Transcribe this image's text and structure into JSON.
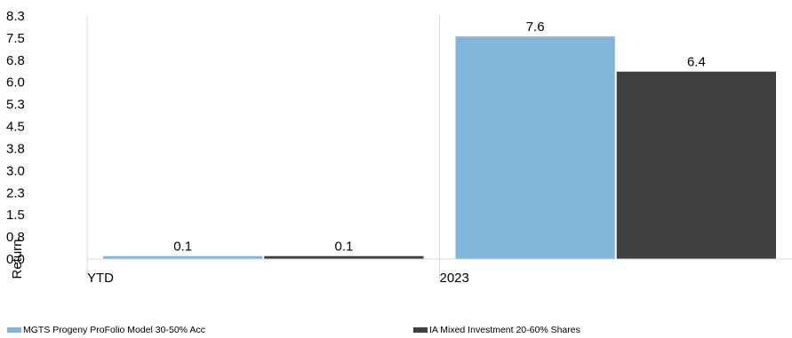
{
  "chart_data": {
    "type": "bar",
    "categories": [
      "YTD",
      "2023"
    ],
    "series": [
      {
        "name": "MGTS Progeny ProFolio Model 30-50% Acc",
        "values": [
          0.1,
          7.6
        ],
        "color": "#7fb6d9"
      },
      {
        "name": "IA Mixed Investment 20-60% Shares",
        "values": [
          0.1,
          6.4
        ],
        "color": "#404040"
      }
    ],
    "data_labels": [
      [
        "0.1",
        "7.6"
      ],
      [
        "0.1",
        "6.4"
      ]
    ],
    "ylabel": "Return",
    "yticks": [
      "8.3",
      "7.5",
      "6.8",
      "6.0",
      "5.3",
      "4.5",
      "3.8",
      "3.0",
      "2.3",
      "1.5",
      "0.8",
      "0.0"
    ],
    "ylim": [
      0,
      8.3
    ],
    "grid": "vertical category separators",
    "legend": "bottom"
  }
}
